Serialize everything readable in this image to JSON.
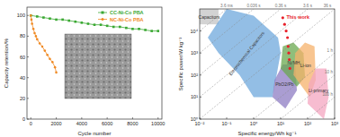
{
  "chart_data": [
    {
      "type": "line",
      "x_label": "Cycle number",
      "y_label": "Capacity retention/%",
      "xlim": [
        -300,
        10300
      ],
      "ylim": [
        0,
        108
      ],
      "xticks": [
        0,
        2000,
        4000,
        6000,
        8000,
        10000
      ],
      "yticks": [
        0,
        20,
        40,
        60,
        80,
        100
      ],
      "legend": "top-right",
      "series": [
        {
          "name": "CC-Ni-Co PBA",
          "color": "#3aa832",
          "marker": "square",
          "x": [
            0,
            500,
            1000,
            1500,
            2000,
            2500,
            3000,
            3500,
            4000,
            4500,
            5000,
            5500,
            6000,
            6500,
            7000,
            7500,
            8000,
            8500,
            9000,
            9500,
            10000
          ],
          "values": [
            100,
            99,
            98,
            97,
            96,
            96,
            95,
            94,
            93,
            92,
            91,
            91,
            90,
            89,
            89,
            88,
            87,
            87,
            86,
            85,
            85
          ]
        },
        {
          "name": "NC-Ni-Co PBA",
          "color": "#f08a24",
          "marker": "circle",
          "x": [
            0,
            50,
            100,
            200,
            300,
            400,
            500,
            700,
            900,
            1100,
            1300,
            1500,
            1700,
            1900,
            2000
          ],
          "values": [
            100,
            96,
            92,
            87,
            83,
            80,
            77,
            73,
            70,
            66,
            62,
            58,
            55,
            50,
            45
          ]
        }
      ]
    },
    {
      "type": "scatter",
      "log": true,
      "x_label": "Specific energy/Wh kg⁻¹",
      "y_label": "Specific power/W kg⁻¹",
      "xlim": [
        0.01,
        1000
      ],
      "ylim": [
        1,
        100000
      ],
      "xticks": [
        {
          "value": 0.01,
          "label": "10⁻²"
        },
        {
          "value": 0.1,
          "label": "10⁻¹"
        },
        {
          "value": 1,
          "label": "10⁰"
        },
        {
          "value": 10,
          "label": "10¹"
        },
        {
          "value": 100,
          "label": "10²"
        },
        {
          "value": 1000,
          "label": "10³"
        }
      ],
      "yticks": [
        {
          "value": 1,
          "label": "10⁰"
        },
        {
          "value": 10,
          "label": "10¹"
        },
        {
          "value": 100,
          "label": "10²"
        },
        {
          "value": 1000,
          "label": "10³"
        },
        {
          "value": 10000,
          "label": "10⁴"
        }
      ],
      "series": [
        {
          "name": "This work",
          "color": "#e8202a",
          "marker": "circle",
          "x": [
            12,
            14,
            16,
            18,
            19,
            20,
            21,
            22
          ],
          "values": [
            40000,
            20000,
            10000,
            5000,
            2000,
            1000,
            500,
            200
          ]
        }
      ],
      "regions": [
        {
          "name": "Capacitors",
          "color": "#c4c4c4",
          "x": [
            0.01,
            0.05,
            0.05,
            0.01
          ],
          "y": [
            20000,
            20000,
            100000,
            100000
          ]
        },
        {
          "name": "Electrochemical Capacitors",
          "color": "#6fa8dc",
          "x": [
            0.02,
            0.1,
            1,
            8,
            10,
            5,
            1,
            0.3,
            0.05
          ],
          "y": [
            5000,
            100000,
            50000,
            5000,
            1000,
            10,
            10,
            100,
            1000
          ]
        },
        {
          "name": "PbO2/Pb",
          "color": "#8e7cc3",
          "x": [
            5,
            15,
            40,
            35,
            12,
            6
          ],
          "y": [
            10,
            3,
            20,
            300,
            300,
            60
          ]
        },
        {
          "name": "Ni/MH",
          "color": "#6aa84f",
          "x": [
            10,
            40,
            80,
            70,
            30,
            12
          ],
          "y": [
            200,
            30,
            80,
            1000,
            3000,
            2000
          ]
        },
        {
          "name": "Li-ion",
          "color": "#f6b26b",
          "x": [
            30,
            120,
            200,
            180,
            80,
            35
          ],
          "y": [
            100,
            10,
            60,
            2000,
            3000,
            1000
          ]
        },
        {
          "name": "Li-primary",
          "color": "#f4a6c0",
          "x": [
            100,
            400,
            600,
            500,
            200,
            110
          ],
          "y": [
            5,
            1,
            10,
            200,
            200,
            40
          ]
        }
      ],
      "time_lines": [
        {
          "value": 1e-06,
          "label": "3.6 ms"
        },
        {
          "value": 1e-05,
          "label": "0.036 s"
        },
        {
          "value": 0.0001,
          "label": "0.36 s"
        },
        {
          "value": 0.001,
          "label": "3.6 s"
        },
        {
          "value": 0.01,
          "label": "36 s"
        },
        {
          "value": 1,
          "label": "1 h"
        },
        {
          "value": 10,
          "label": "10 h"
        },
        {
          "value": 100,
          "label": "100 h"
        }
      ]
    }
  ]
}
